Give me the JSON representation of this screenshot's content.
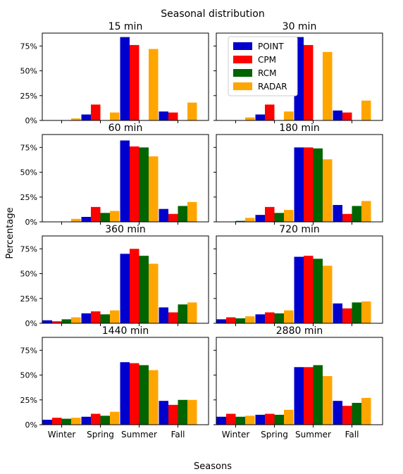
{
  "figure": {
    "suptitle": "Seasonal distribution",
    "xlabel": "Seasons",
    "ylabel": "Percentage"
  },
  "legend": {
    "placement": "upper-left of 30 min panel",
    "entries": [
      "POINT",
      "CPM",
      "RCM",
      "RADAR"
    ]
  },
  "colors": {
    "POINT": "#0000cc",
    "CPM": "#ff0000",
    "RCM": "#006400",
    "RADAR": "#ffa500"
  },
  "chart_data": [
    {
      "type": "bar",
      "title": "15 min",
      "categories": [
        "Winter",
        "Spring",
        "Summer",
        "Fall"
      ],
      "ylim": [
        0,
        88
      ],
      "yticks": [
        "0%",
        "25%",
        "50%",
        "75%"
      ],
      "series": [
        {
          "name": "POINT",
          "values": [
            0,
            6,
            84,
            9
          ]
        },
        {
          "name": "CPM",
          "values": [
            0,
            16,
            76,
            8
          ]
        },
        {
          "name": "RADAR",
          "values": [
            2,
            8,
            72,
            18
          ]
        }
      ]
    },
    {
      "type": "bar",
      "title": "30 min",
      "categories": [
        "Winter",
        "Spring",
        "Summer",
        "Fall"
      ],
      "ylim": [
        0,
        88
      ],
      "yticks": [
        "0%",
        "25%",
        "50%",
        "75%"
      ],
      "series": [
        {
          "name": "POINT",
          "values": [
            0,
            6,
            84,
            10
          ]
        },
        {
          "name": "CPM",
          "values": [
            0,
            16,
            76,
            8
          ]
        },
        {
          "name": "RADAR",
          "values": [
            3,
            9,
            69,
            20
          ]
        }
      ]
    },
    {
      "type": "bar",
      "title": "60 min",
      "categories": [
        "Winter",
        "Spring",
        "Summer",
        "Fall"
      ],
      "ylim": [
        0,
        88
      ],
      "yticks": [
        "0%",
        "25%",
        "50%",
        "75%"
      ],
      "series": [
        {
          "name": "POINT",
          "values": [
            0,
            5,
            82,
            13
          ]
        },
        {
          "name": "CPM",
          "values": [
            0,
            15,
            76,
            8
          ]
        },
        {
          "name": "RCM",
          "values": [
            0,
            9,
            75,
            16
          ]
        },
        {
          "name": "RADAR",
          "values": [
            3,
            11,
            66,
            20
          ]
        }
      ]
    },
    {
      "type": "bar",
      "title": "180 min",
      "categories": [
        "Winter",
        "Spring",
        "Summer",
        "Fall"
      ],
      "ylim": [
        0,
        88
      ],
      "yticks": [
        "0%",
        "25%",
        "50%",
        "75%"
      ],
      "series": [
        {
          "name": "POINT",
          "values": [
            0,
            7,
            75,
            17
          ]
        },
        {
          "name": "CPM",
          "values": [
            0,
            15,
            75,
            8
          ]
        },
        {
          "name": "RCM",
          "values": [
            1,
            9,
            74,
            16
          ]
        },
        {
          "name": "RADAR",
          "values": [
            4,
            12,
            63,
            21
          ]
        }
      ]
    },
    {
      "type": "bar",
      "title": "360 min",
      "categories": [
        "Winter",
        "Spring",
        "Summer",
        "Fall"
      ],
      "ylim": [
        0,
        88
      ],
      "yticks": [
        "0%",
        "25%",
        "50%",
        "75%"
      ],
      "series": [
        {
          "name": "POINT",
          "values": [
            3,
            10,
            70,
            16
          ]
        },
        {
          "name": "CPM",
          "values": [
            2,
            12,
            75,
            11
          ]
        },
        {
          "name": "RCM",
          "values": [
            4,
            9,
            68,
            19
          ]
        },
        {
          "name": "RADAR",
          "values": [
            6,
            13,
            60,
            21
          ]
        }
      ]
    },
    {
      "type": "bar",
      "title": "720 min",
      "categories": [
        "Winter",
        "Spring",
        "Summer",
        "Fall"
      ],
      "ylim": [
        0,
        88
      ],
      "yticks": [
        "0%",
        "25%",
        "50%",
        "75%"
      ],
      "series": [
        {
          "name": "POINT",
          "values": [
            4,
            9,
            67,
            20
          ]
        },
        {
          "name": "CPM",
          "values": [
            6,
            11,
            68,
            15
          ]
        },
        {
          "name": "RCM",
          "values": [
            5,
            10,
            65,
            21
          ]
        },
        {
          "name": "RADAR",
          "values": [
            7,
            13,
            58,
            22
          ]
        }
      ]
    },
    {
      "type": "bar",
      "title": "1440 min",
      "categories": [
        "Winter",
        "Spring",
        "Summer",
        "Fall"
      ],
      "ylim": [
        0,
        88
      ],
      "yticks": [
        "0%",
        "25%",
        "50%",
        "75%"
      ],
      "series": [
        {
          "name": "POINT",
          "values": [
            5,
            8,
            63,
            24
          ]
        },
        {
          "name": "CPM",
          "values": [
            7,
            11,
            62,
            20
          ]
        },
        {
          "name": "RCM",
          "values": [
            6,
            9,
            60,
            25
          ]
        },
        {
          "name": "RADAR",
          "values": [
            7,
            13,
            55,
            25
          ]
        }
      ]
    },
    {
      "type": "bar",
      "title": "2880 min",
      "categories": [
        "Winter",
        "Spring",
        "Summer",
        "Fall"
      ],
      "ylim": [
        0,
        88
      ],
      "yticks": [
        "0%",
        "25%",
        "50%",
        "75%"
      ],
      "series": [
        {
          "name": "POINT",
          "values": [
            8,
            10,
            58,
            24
          ]
        },
        {
          "name": "CPM",
          "values": [
            11,
            11,
            58,
            19
          ]
        },
        {
          "name": "RCM",
          "values": [
            8,
            10,
            60,
            22
          ]
        },
        {
          "name": "RADAR",
          "values": [
            9,
            15,
            49,
            27
          ]
        }
      ]
    }
  ]
}
